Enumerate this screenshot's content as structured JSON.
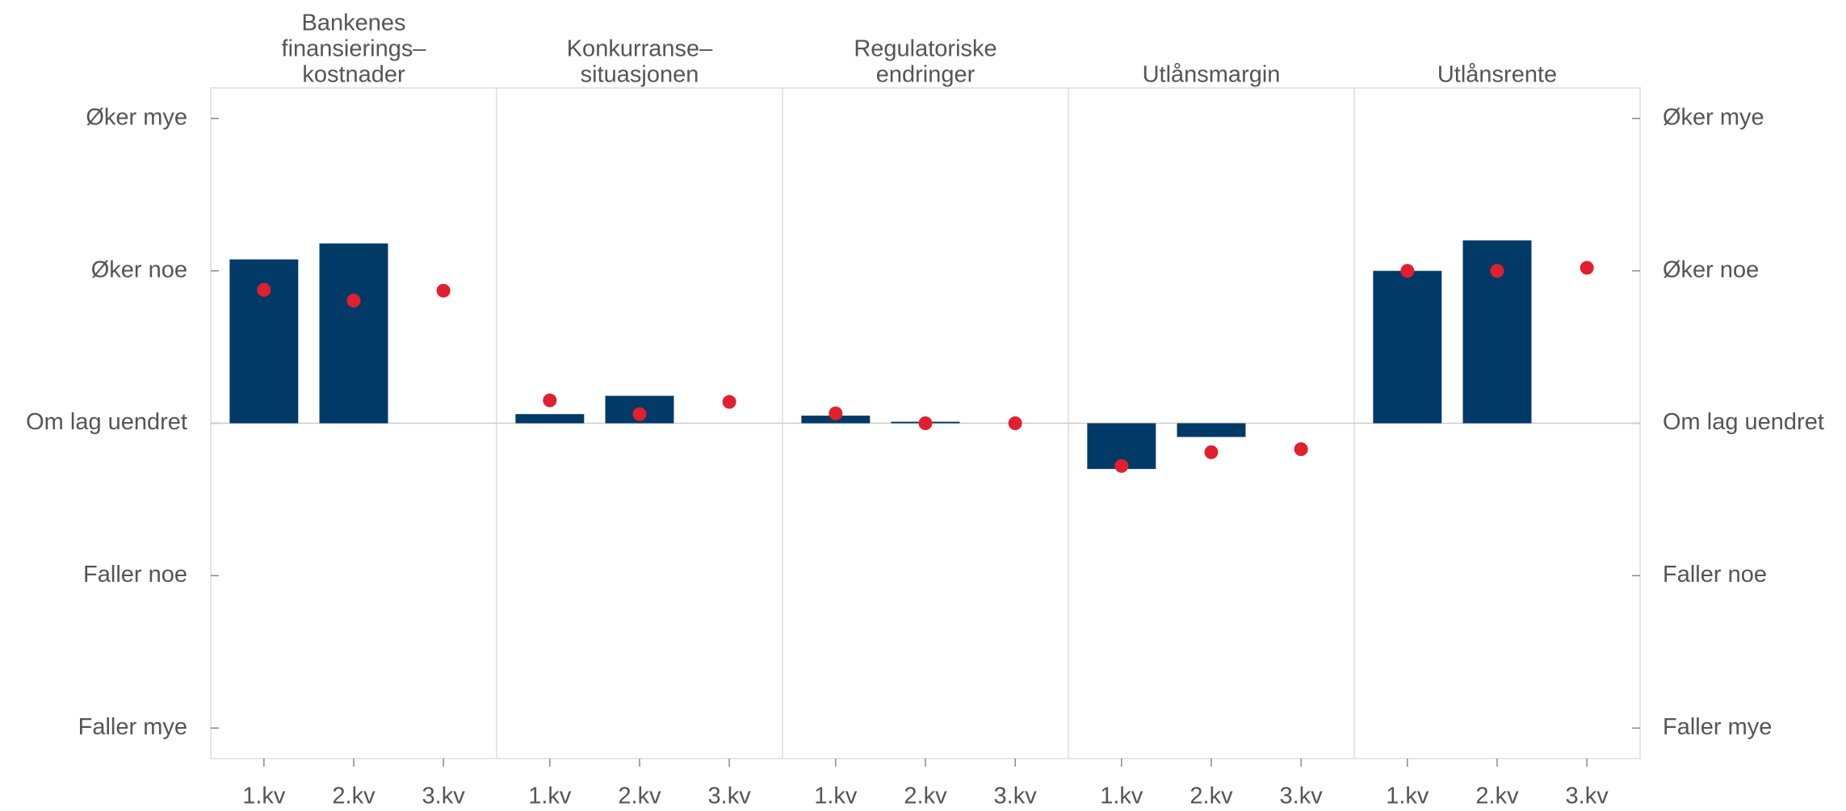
{
  "chart_data": {
    "type": "bar",
    "ylim": [
      -2.2,
      2.2
    ],
    "yticks": [
      {
        "value": -2,
        "label": "Faller mye"
      },
      {
        "value": -1,
        "label": "Faller noe"
      },
      {
        "value": 0,
        "label": "Om lag uendret"
      },
      {
        "value": 1,
        "label": "Øker noe"
      },
      {
        "value": 2,
        "label": "Øker mye"
      }
    ],
    "panels": [
      {
        "title": [
          "Bankenes",
          "finansierings–",
          "kostnader"
        ],
        "categories": [
          "1.kv",
          "2.kv",
          "3.kv"
        ],
        "series": [
          {
            "type": "bar",
            "color": "#023a67",
            "values": [
              1.075,
              1.18,
              null
            ]
          },
          {
            "type": "scatter",
            "color": "#e0202e",
            "values": [
              0.875,
              0.805,
              0.87
            ]
          }
        ]
      },
      {
        "title": [
          "Konkurranse–",
          "situasjonen"
        ],
        "categories": [
          "1.kv",
          "2.kv",
          "3.kv"
        ],
        "series": [
          {
            "type": "bar",
            "color": "#023a67",
            "values": [
              0.06,
              0.18,
              null
            ]
          },
          {
            "type": "scatter",
            "color": "#e0202e",
            "values": [
              0.15,
              0.06,
              0.14
            ]
          }
        ]
      },
      {
        "title": [
          "Regulatoriske",
          "endringer"
        ],
        "categories": [
          "1.kv",
          "2.kv",
          "3.kv"
        ],
        "series": [
          {
            "type": "bar",
            "color": "#023a67",
            "values": [
              0.05,
              0.01,
              null
            ]
          },
          {
            "type": "scatter",
            "color": "#e0202e",
            "values": [
              0.065,
              0,
              0
            ]
          }
        ]
      },
      {
        "title": [
          "Utlånsmargin"
        ],
        "categories": [
          "1.kv",
          "2.kv",
          "3.kv"
        ],
        "series": [
          {
            "type": "bar",
            "color": "#023a67",
            "values": [
              -0.3,
              -0.09,
              null
            ]
          },
          {
            "type": "scatter",
            "color": "#e0202e",
            "values": [
              -0.28,
              -0.19,
              -0.17
            ]
          }
        ]
      },
      {
        "title": [
          "Utlånsrente"
        ],
        "categories": [
          "1.kv",
          "2.kv",
          "3.kv"
        ],
        "series": [
          {
            "type": "bar",
            "color": "#023a67",
            "values": [
              1.0,
              1.2,
              null
            ]
          },
          {
            "type": "scatter",
            "color": "#e0202e",
            "values": [
              1.0,
              1.0,
              1.02
            ]
          }
        ]
      }
    ]
  }
}
